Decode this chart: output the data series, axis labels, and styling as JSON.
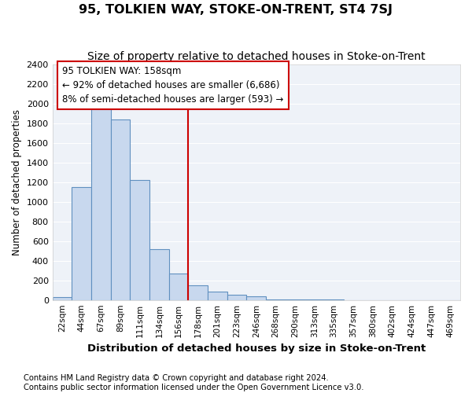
{
  "title": "95, TOLKIEN WAY, STOKE-ON-TRENT, ST4 7SJ",
  "subtitle": "Size of property relative to detached houses in Stoke-on-Trent",
  "xlabel": "Distribution of detached houses by size in Stoke-on-Trent",
  "ylabel": "Number of detached properties",
  "categories": [
    "22sqm",
    "44sqm",
    "67sqm",
    "89sqm",
    "111sqm",
    "134sqm",
    "156sqm",
    "178sqm",
    "201sqm",
    "223sqm",
    "246sqm",
    "268sqm",
    "290sqm",
    "313sqm",
    "335sqm",
    "357sqm",
    "380sqm",
    "402sqm",
    "424sqm",
    "447sqm",
    "469sqm"
  ],
  "values": [
    30,
    1150,
    1950,
    1840,
    1220,
    520,
    270,
    150,
    85,
    50,
    40,
    5,
    5,
    3,
    2,
    1,
    1,
    1,
    1,
    1,
    1
  ],
  "bar_color": "#c8d8ee",
  "bar_edge_color": "#6090c0",
  "vline_index": 6,
  "vline_color": "#cc0000",
  "annotation_line1": "95 TOLKIEN WAY: 158sqm",
  "annotation_line2": "← 92% of detached houses are smaller (6,686)",
  "annotation_line3": "8% of semi-detached houses are larger (593) →",
  "ylim": [
    0,
    2400
  ],
  "yticks": [
    0,
    200,
    400,
    600,
    800,
    1000,
    1200,
    1400,
    1600,
    1800,
    2000,
    2200,
    2400
  ],
  "footnote1": "Contains HM Land Registry data © Crown copyright and database right 2024.",
  "footnote2": "Contains public sector information licensed under the Open Government Licence v3.0.",
  "background_color": "#eef2f8"
}
